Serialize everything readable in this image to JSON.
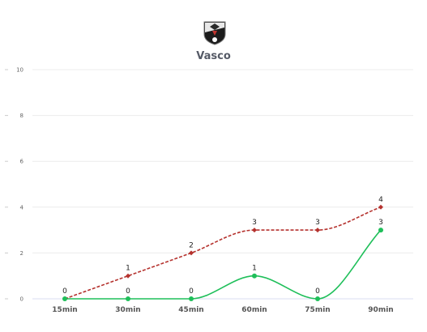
{
  "header": {
    "team_name": "Vasco",
    "logo_icon": "vasco-crest-icon"
  },
  "chart_data": {
    "type": "line",
    "title": "Vasco",
    "xlabel": "",
    "ylabel": "",
    "categories": [
      "15min",
      "30min",
      "45min",
      "60min",
      "75min",
      "90min"
    ],
    "ylim": [
      0,
      10
    ],
    "yticks": [
      0,
      2,
      4,
      6,
      8,
      10
    ],
    "grid": true,
    "series": [
      {
        "values": [
          0,
          1,
          2,
          3,
          3,
          4
        ],
        "color": "#b5322e",
        "style": "dashed",
        "marker": "diamond"
      },
      {
        "values": [
          0,
          0,
          0,
          1,
          0,
          3
        ],
        "color": "#1fbf5a",
        "style": "solid",
        "marker": "circle"
      }
    ]
  }
}
